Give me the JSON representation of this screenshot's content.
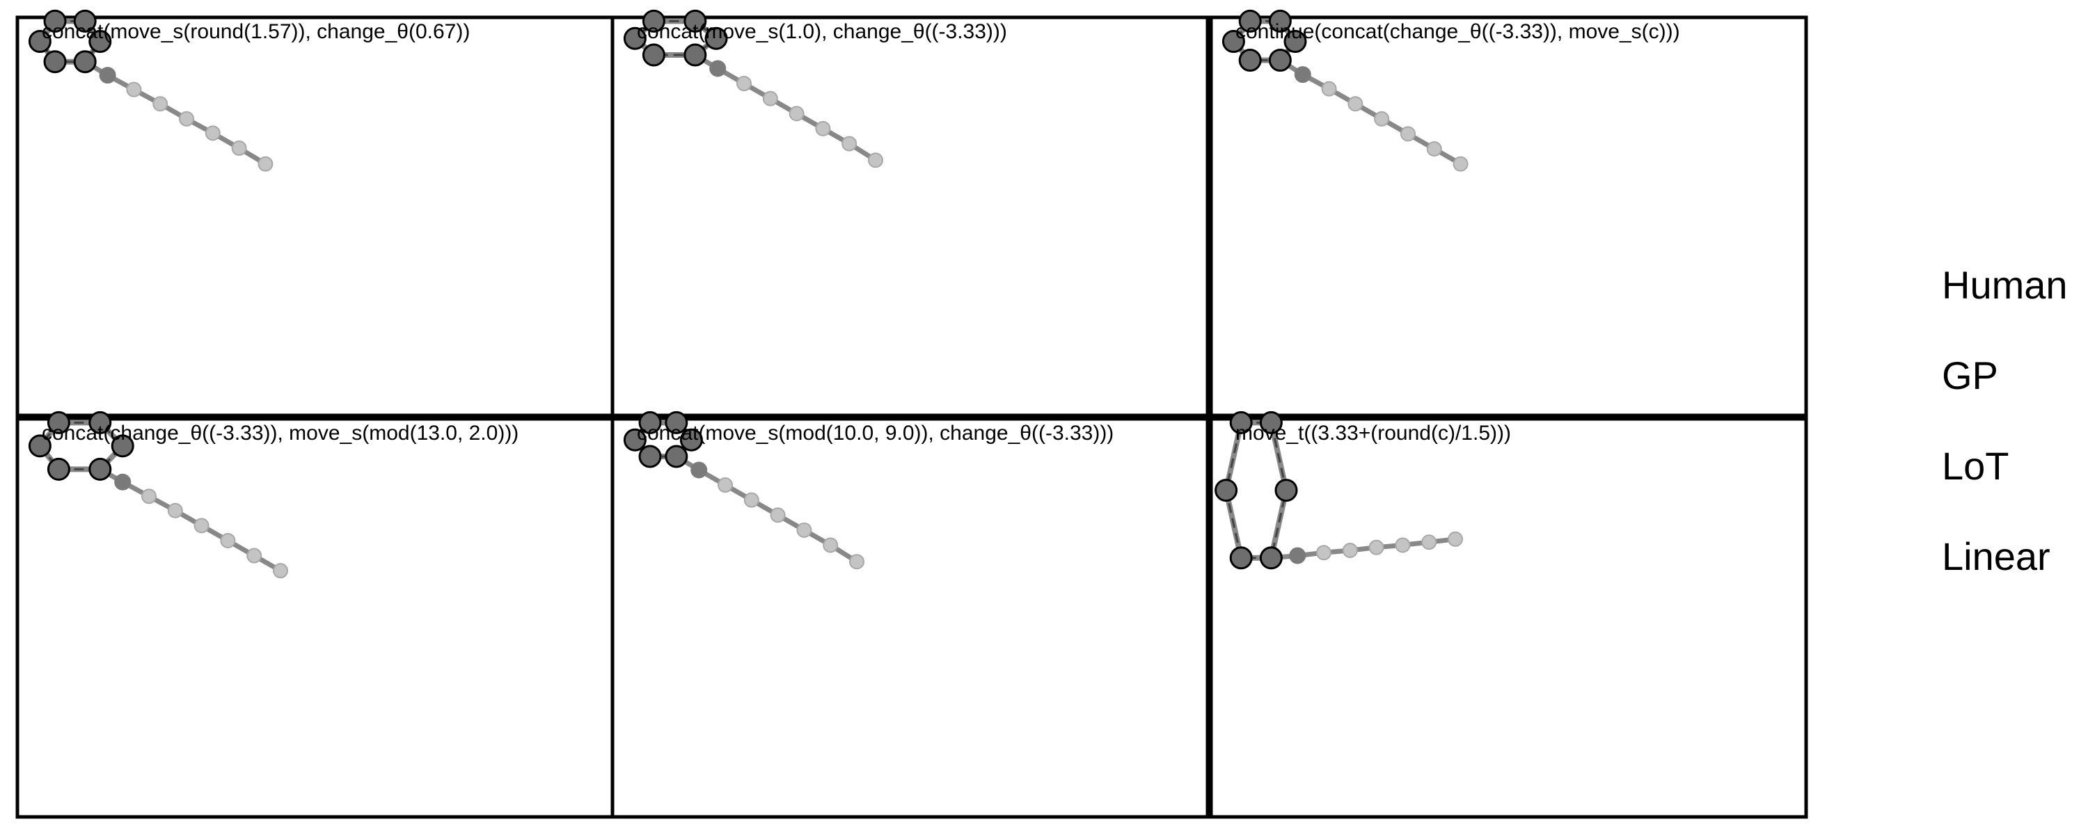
{
  "panels": [
    {
      "label": "concat(move_s(round(1.57)), change_θ(0.67))",
      "shape": "hexagon",
      "dark_points": [
        [
          0.5,
          0.05
        ],
        [
          0.9,
          0.05
        ],
        [
          1.1,
          0.32
        ],
        [
          0.9,
          0.59
        ],
        [
          0.5,
          0.59
        ],
        [
          0.3,
          0.32
        ]
      ],
      "trail": [
        [
          0.9,
          0.59
        ],
        [
          1.2,
          0.77
        ],
        [
          1.55,
          0.96
        ],
        [
          1.9,
          1.15
        ],
        [
          2.25,
          1.35
        ],
        [
          2.6,
          1.54
        ],
        [
          2.95,
          1.74
        ],
        [
          3.3,
          1.95
        ]
      ]
    },
    {
      "label": "concat(move_s(1.0), change_θ((-3.33)))",
      "shape": "hexagon",
      "dark_points": [
        [
          0.55,
          0.05
        ],
        [
          1.1,
          0.05
        ],
        [
          1.38,
          0.28
        ],
        [
          1.1,
          0.5
        ],
        [
          0.55,
          0.5
        ],
        [
          0.3,
          0.28
        ]
      ],
      "trail": [
        [
          1.1,
          0.5
        ],
        [
          1.4,
          0.68
        ],
        [
          1.75,
          0.88
        ],
        [
          2.1,
          1.08
        ],
        [
          2.45,
          1.28
        ],
        [
          2.8,
          1.48
        ],
        [
          3.15,
          1.68
        ],
        [
          3.5,
          1.9
        ]
      ]
    },
    {
      "label": "continue(concat(change_θ((-3.33)), move_s(c)))",
      "shape": "hexagon",
      "dark_points": [
        [
          0.52,
          0.05
        ],
        [
          0.92,
          0.05
        ],
        [
          1.12,
          0.32
        ],
        [
          0.92,
          0.57
        ],
        [
          0.52,
          0.57
        ],
        [
          0.3,
          0.32
        ]
      ],
      "trail": [
        [
          0.92,
          0.57
        ],
        [
          1.22,
          0.76
        ],
        [
          1.57,
          0.95
        ],
        [
          1.92,
          1.15
        ],
        [
          2.27,
          1.35
        ],
        [
          2.62,
          1.55
        ],
        [
          2.97,
          1.75
        ],
        [
          3.32,
          1.95
        ]
      ]
    },
    {
      "label": "concat(change_θ((-3.33)), move_s(mod(13.0, 2.0)))",
      "shape": "hexagon",
      "dark_points": [
        [
          0.55,
          0.05
        ],
        [
          1.1,
          0.05
        ],
        [
          1.4,
          0.36
        ],
        [
          1.1,
          0.67
        ],
        [
          0.55,
          0.67
        ],
        [
          0.3,
          0.36
        ]
      ],
      "trail": [
        [
          1.1,
          0.67
        ],
        [
          1.4,
          0.84
        ],
        [
          1.75,
          1.03
        ],
        [
          2.1,
          1.22
        ],
        [
          2.45,
          1.42
        ],
        [
          2.8,
          1.62
        ],
        [
          3.15,
          1.82
        ],
        [
          3.5,
          2.02
        ]
      ]
    },
    {
      "label": "concat(move_s(mod(10.0, 9.0)), change_θ((-3.33)))",
      "shape": "hexagon",
      "dark_points": [
        [
          0.5,
          0.05
        ],
        [
          0.85,
          0.05
        ],
        [
          1.05,
          0.28
        ],
        [
          0.85,
          0.5
        ],
        [
          0.5,
          0.5
        ],
        [
          0.3,
          0.28
        ]
      ],
      "trail": [
        [
          0.85,
          0.5
        ],
        [
          1.15,
          0.68
        ],
        [
          1.5,
          0.88
        ],
        [
          1.85,
          1.08
        ],
        [
          2.2,
          1.28
        ],
        [
          2.55,
          1.48
        ],
        [
          2.9,
          1.68
        ],
        [
          3.25,
          1.9
        ]
      ]
    },
    {
      "label": "move_t((3.33+(round(c)/1.5)))",
      "shape": "tall-hexagon",
      "dark_points": [
        [
          0.4,
          0.05
        ],
        [
          0.8,
          0.05
        ],
        [
          1.0,
          0.95
        ],
        [
          0.8,
          1.85
        ],
        [
          0.4,
          1.85
        ],
        [
          0.2,
          0.95
        ]
      ],
      "trail": [
        [
          0.8,
          1.85
        ],
        [
          1.15,
          1.82
        ],
        [
          1.5,
          1.78
        ],
        [
          1.85,
          1.75
        ],
        [
          2.2,
          1.71
        ],
        [
          2.55,
          1.68
        ],
        [
          2.9,
          1.64
        ],
        [
          3.25,
          1.6
        ]
      ]
    }
  ],
  "legend": [
    "Human",
    "GP",
    "LoT",
    "Linear"
  ],
  "colors": {
    "frame": "#000000",
    "line": "#888888",
    "dash": "#444444",
    "dark_point": "#6e6e6e",
    "mid_point": "#7a7a7a",
    "light_point": "#c4c4c4"
  }
}
